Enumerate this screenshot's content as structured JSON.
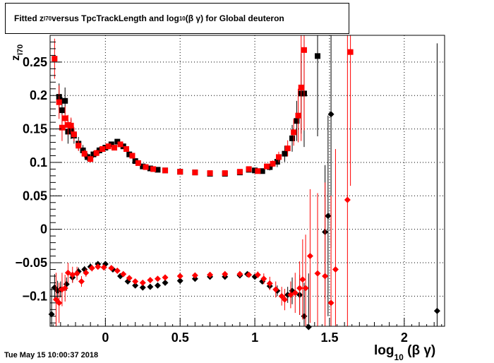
{
  "title": {
    "prefix": "Fitted  z",
    "sub1": "I70",
    "middle": "  versus TpcTrackLength and log",
    "sub2": "10",
    "suffix": " (β γ) for Global deuteron"
  },
  "timestamp": "Tue May 15 10:00:37 2018",
  "x_axis_label": {
    "main": "log",
    "sub": "10",
    "rest": " (β γ)"
  },
  "y_axis_label": {
    "main": "z",
    "sub": "I70"
  },
  "chart_data": {
    "type": "scatter",
    "xlim": [
      -0.37,
      2.27
    ],
    "ylim": [
      -0.145,
      0.29
    ],
    "grid": true,
    "x_ticks": [
      0,
      0.5,
      1,
      1.5,
      2
    ],
    "x_tick_labels": [
      "0",
      "0.5",
      "1",
      "1.5",
      "2"
    ],
    "y_ticks": [
      -0.1,
      -0.05,
      0,
      0.05,
      0.1,
      0.15,
      0.2,
      0.25
    ],
    "y_tick_labels": [
      "−0.1",
      "−0.05",
      "0",
      "0.05",
      "0.1",
      "0.15",
      "0.2",
      "0.25"
    ],
    "series": [
      {
        "marker": "square",
        "color": "#000000",
        "points": [
          [
            -0.31,
            0.198
          ],
          [
            -0.29,
            0.178
          ],
          [
            -0.27,
            0.192
          ],
          [
            -0.25,
            0.146
          ],
          [
            -0.23,
            0.15
          ],
          [
            -0.21,
            0.14
          ],
          [
            -0.18,
            0.128
          ],
          [
            -0.15,
            0.118
          ],
          [
            -0.12,
            0.108
          ],
          [
            -0.08,
            0.112
          ],
          [
            -0.04,
            0.118
          ],
          [
            0.0,
            0.122
          ],
          [
            0.04,
            0.127
          ],
          [
            0.08,
            0.131
          ],
          [
            0.12,
            0.124
          ],
          [
            0.16,
            0.112
          ],
          [
            0.2,
            0.102
          ],
          [
            0.25,
            0.094
          ],
          [
            0.3,
            0.091
          ],
          [
            0.35,
            0.089
          ],
          [
            0.4,
            0.088
          ],
          [
            0.5,
            0.086
          ],
          [
            0.6,
            0.085
          ],
          [
            0.7,
            0.083
          ],
          [
            0.8,
            0.083
          ],
          [
            0.9,
            0.085
          ],
          [
            0.96,
            0.089
          ],
          [
            1.0,
            0.088
          ],
          [
            1.05,
            0.087
          ],
          [
            1.1,
            0.093
          ],
          [
            1.15,
            0.101
          ],
          [
            1.2,
            0.113
          ],
          [
            1.25,
            0.136
          ],
          [
            1.28,
            0.162
          ],
          [
            1.31,
            0.203
          ],
          [
            1.33,
            0.203
          ],
          [
            1.42,
            0.259
          ]
        ],
        "error": [
          0.02,
          0.02,
          0.02,
          0.018,
          0.015,
          0.012,
          0.01,
          0.008,
          0.006,
          0.005,
          0.005,
          0.004,
          0.004,
          0.004,
          0.004,
          0.004,
          0.003,
          0.003,
          0.003,
          0.002,
          0.002,
          0.002,
          0.002,
          0.002,
          0.002,
          0.002,
          0.003,
          0.003,
          0.004,
          0.005,
          0.008,
          0.012,
          0.02,
          0.03,
          0.06,
          0.08,
          0.12
        ]
      },
      {
        "marker": "square",
        "color": "#ff0000",
        "points": [
          [
            -0.34,
            0.255
          ],
          [
            -0.31,
            0.19
          ],
          [
            -0.29,
            0.152
          ],
          [
            -0.27,
            0.166
          ],
          [
            -0.25,
            0.156
          ],
          [
            -0.23,
            0.155
          ],
          [
            -0.21,
            0.142
          ],
          [
            -0.18,
            0.125
          ],
          [
            -0.14,
            0.113
          ],
          [
            -0.1,
            0.105
          ],
          [
            -0.06,
            0.114
          ],
          [
            -0.02,
            0.12
          ],
          [
            0.02,
            0.124
          ],
          [
            0.06,
            0.122
          ],
          [
            0.1,
            0.127
          ],
          [
            0.14,
            0.12
          ],
          [
            0.18,
            0.11
          ],
          [
            0.22,
            0.099
          ],
          [
            0.27,
            0.093
          ],
          [
            0.32,
            0.09
          ],
          [
            0.4,
            0.088
          ],
          [
            0.5,
            0.086
          ],
          [
            0.6,
            0.085
          ],
          [
            0.7,
            0.084
          ],
          [
            0.8,
            0.084
          ],
          [
            0.9,
            0.086
          ],
          [
            0.96,
            0.09
          ],
          [
            1.02,
            0.087
          ],
          [
            1.08,
            0.094
          ],
          [
            1.12,
            0.098
          ],
          [
            1.16,
            0.108
          ],
          [
            1.22,
            0.121
          ],
          [
            1.26,
            0.145
          ],
          [
            1.29,
            0.17
          ],
          [
            1.31,
            0.212
          ],
          [
            1.33,
            0.268
          ],
          [
            1.64,
            0.265
          ]
        ],
        "error": [
          0.03,
          0.025,
          0.02,
          0.018,
          0.015,
          0.012,
          0.01,
          0.008,
          0.006,
          0.005,
          0.005,
          0.004,
          0.004,
          0.004,
          0.004,
          0.004,
          0.003,
          0.003,
          0.003,
          0.002,
          0.002,
          0.002,
          0.002,
          0.002,
          0.002,
          0.002,
          0.003,
          0.003,
          0.004,
          0.005,
          0.008,
          0.012,
          0.02,
          0.04,
          0.08,
          0.12,
          0.2
        ]
      },
      {
        "marker": "diamond",
        "color": "#000000",
        "points": [
          [
            -0.36,
            -0.127
          ],
          [
            -0.34,
            -0.087
          ],
          [
            -0.32,
            -0.092
          ],
          [
            -0.3,
            -0.09
          ],
          [
            -0.26,
            -0.082
          ],
          [
            -0.22,
            -0.072
          ],
          [
            -0.18,
            -0.063
          ],
          [
            -0.14,
            -0.06
          ],
          [
            -0.1,
            -0.056
          ],
          [
            -0.05,
            -0.052
          ],
          [
            0.0,
            -0.052
          ],
          [
            0.05,
            -0.06
          ],
          [
            0.1,
            -0.07
          ],
          [
            0.15,
            -0.078
          ],
          [
            0.2,
            -0.084
          ],
          [
            0.25,
            -0.087
          ],
          [
            0.3,
            -0.086
          ],
          [
            0.35,
            -0.084
          ],
          [
            0.4,
            -0.08
          ],
          [
            0.5,
            -0.077
          ],
          [
            0.6,
            -0.074
          ],
          [
            0.7,
            -0.071
          ],
          [
            0.8,
            -0.071
          ],
          [
            0.9,
            -0.069
          ],
          [
            0.95,
            -0.067
          ],
          [
            1.0,
            -0.071
          ],
          [
            1.05,
            -0.078
          ],
          [
            1.1,
            -0.085
          ],
          [
            1.15,
            -0.092
          ],
          [
            1.22,
            -0.098
          ],
          [
            1.25,
            -0.092
          ],
          [
            1.3,
            -0.098
          ],
          [
            1.33,
            -0.13
          ],
          [
            1.36,
            -0.146
          ],
          [
            1.47,
            -0.004
          ],
          [
            1.49,
            0.02
          ],
          [
            1.51,
            0.172
          ],
          [
            2.22,
            -0.122
          ]
        ],
        "error": [
          0.04,
          0.02,
          0.015,
          0.012,
          0.01,
          0.008,
          0.006,
          0.005,
          0.005,
          0.004,
          0.004,
          0.004,
          0.004,
          0.004,
          0.004,
          0.003,
          0.003,
          0.003,
          0.003,
          0.002,
          0.002,
          0.002,
          0.002,
          0.002,
          0.003,
          0.003,
          0.004,
          0.005,
          0.008,
          0.012,
          0.02,
          0.03,
          0.05,
          0.08,
          0.1,
          0.15,
          0.2,
          0.4
        ]
      },
      {
        "marker": "diamond",
        "color": "#ff0000",
        "points": [
          [
            -0.33,
            -0.105
          ],
          [
            -0.31,
            -0.11
          ],
          [
            -0.29,
            -0.09
          ],
          [
            -0.27,
            -0.088
          ],
          [
            -0.25,
            -0.065
          ],
          [
            -0.22,
            -0.068
          ],
          [
            -0.19,
            -0.066
          ],
          [
            -0.16,
            -0.078
          ],
          [
            -0.13,
            -0.065
          ],
          [
            -0.09,
            -0.058
          ],
          [
            -0.05,
            -0.056
          ],
          [
            -0.01,
            -0.057
          ],
          [
            0.04,
            -0.058
          ],
          [
            0.08,
            -0.062
          ],
          [
            0.12,
            -0.067
          ],
          [
            0.16,
            -0.073
          ],
          [
            0.2,
            -0.078
          ],
          [
            0.25,
            -0.08
          ],
          [
            0.3,
            -0.076
          ],
          [
            0.35,
            -0.074
          ],
          [
            0.4,
            -0.072
          ],
          [
            0.5,
            -0.07
          ],
          [
            0.6,
            -0.069
          ],
          [
            0.7,
            -0.068
          ],
          [
            0.8,
            -0.067
          ],
          [
            0.9,
            -0.067
          ],
          [
            0.96,
            -0.068
          ],
          [
            1.02,
            -0.068
          ],
          [
            1.06,
            -0.074
          ],
          [
            1.1,
            -0.081
          ],
          [
            1.14,
            -0.09
          ],
          [
            1.18,
            -0.1
          ],
          [
            1.2,
            -0.105
          ],
          [
            1.24,
            -0.098
          ],
          [
            1.27,
            -0.095
          ],
          [
            1.3,
            -0.088
          ],
          [
            1.32,
            -0.075
          ],
          [
            1.34,
            -0.088
          ],
          [
            1.37,
            -0.04
          ],
          [
            1.42,
            -0.066
          ],
          [
            1.47,
            -0.07
          ],
          [
            1.51,
            -0.11
          ],
          [
            1.54,
            -0.06
          ],
          [
            1.62,
            0.044
          ]
        ],
        "error": [
          0.04,
          0.03,
          0.025,
          0.02,
          0.015,
          0.012,
          0.01,
          0.008,
          0.006,
          0.005,
          0.004,
          0.004,
          0.004,
          0.004,
          0.004,
          0.003,
          0.003,
          0.003,
          0.003,
          0.002,
          0.002,
          0.002,
          0.002,
          0.002,
          0.003,
          0.003,
          0.004,
          0.005,
          0.008,
          0.01,
          0.012,
          0.014,
          0.016,
          0.02,
          0.03,
          0.04,
          0.06,
          0.08,
          0.1,
          0.12,
          0.14,
          0.16,
          0.18,
          0.25
        ]
      }
    ]
  }
}
